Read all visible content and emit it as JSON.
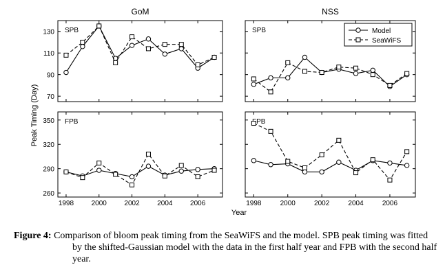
{
  "figure": {
    "ylabel": "Peak Timing (Day)",
    "xlabel": "Year"
  },
  "caption": {
    "label": "Figure 4:",
    "text": "Comparison of bloom peak timing from the SeaWiFS and the model. SPB peak timing was fitted by the shifted-Gaussian model with the data in the first half year and FPB with the second half year."
  },
  "legend": {
    "model": "Model",
    "seawifs": "SeaWiFS"
  },
  "chart_data": [
    {
      "type": "line",
      "title": "GoM",
      "panel_label": "SPB",
      "x": [
        1998,
        1999,
        2000,
        2001,
        2002,
        2003,
        2004,
        2005,
        2006,
        2007
      ],
      "xlim": [
        1997.5,
        2007.5
      ],
      "ylim": [
        65,
        140
      ],
      "xticks": [
        1998,
        2000,
        2002,
        2004,
        2006
      ],
      "yticks": [
        70,
        90,
        110,
        130
      ],
      "series": [
        {
          "name": "Model",
          "values": [
            92,
            116,
            135,
            105,
            117,
            123,
            109,
            114,
            96,
            106
          ]
        },
        {
          "name": "SeaWiFS",
          "values": [
            108,
            120,
            135,
            101,
            125,
            114,
            118,
            118,
            99,
            106
          ]
        }
      ]
    },
    {
      "type": "line",
      "title": "NSS",
      "panel_label": "SPB",
      "x": [
        1998,
        1999,
        2000,
        2001,
        2002,
        2003,
        2004,
        2005,
        2006,
        2007
      ],
      "xlim": [
        1997.5,
        2007.5
      ],
      "ylim": [
        65,
        140
      ],
      "xticks": [
        1998,
        2000,
        2002,
        2004,
        2006
      ],
      "yticks": [
        70,
        90,
        110,
        130
      ],
      "legend_position": "top-right",
      "series": [
        {
          "name": "Model",
          "values": [
            81,
            87,
            87,
            106,
            92,
            95,
            91,
            94,
            79,
            90
          ]
        },
        {
          "name": "SeaWiFS",
          "values": [
            86,
            74,
            101,
            93,
            92,
            97,
            96,
            90,
            80,
            91
          ]
        }
      ]
    },
    {
      "type": "line",
      "title": "",
      "panel_label": "FPB",
      "x": [
        1998,
        1999,
        2000,
        2001,
        2002,
        2003,
        2004,
        2005,
        2006,
        2007
      ],
      "xlim": [
        1997.5,
        2007.5
      ],
      "ylim": [
        255,
        360
      ],
      "xticks": [
        1998,
        2000,
        2002,
        2004,
        2006
      ],
      "yticks": [
        260,
        290,
        320,
        350
      ],
      "series": [
        {
          "name": "Model",
          "values": [
            286,
            281,
            288,
            284,
            280,
            293,
            282,
            287,
            289,
            290
          ]
        },
        {
          "name": "SeaWiFS",
          "values": [
            286,
            279,
            297,
            283,
            270,
            308,
            281,
            294,
            280,
            288
          ]
        }
      ]
    },
    {
      "type": "line",
      "title": "",
      "panel_label": "FPB",
      "x": [
        1998,
        1999,
        2000,
        2001,
        2002,
        2003,
        2004,
        2005,
        2006,
        2007
      ],
      "xlim": [
        1997.5,
        2007.5
      ],
      "ylim": [
        255,
        360
      ],
      "xticks": [
        1998,
        2000,
        2002,
        2004,
        2006
      ],
      "yticks": [
        260,
        290,
        320,
        350
      ],
      "series": [
        {
          "name": "Model",
          "values": [
            300,
            295,
            296,
            286,
            286,
            298,
            288,
            300,
            297,
            294
          ]
        },
        {
          "name": "SeaWiFS",
          "values": [
            346,
            336,
            299,
            291,
            307,
            325,
            285,
            301,
            276,
            311
          ]
        }
      ]
    }
  ]
}
